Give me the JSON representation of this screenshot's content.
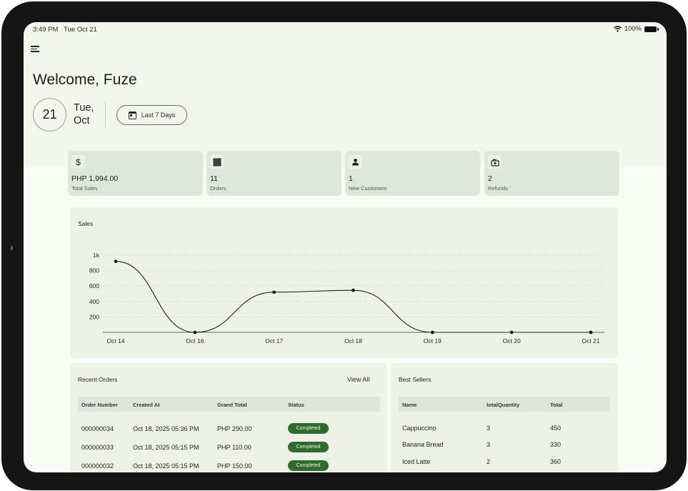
{
  "status_bar": {
    "time": "3:49 PM",
    "date": "Tue Oct 21",
    "battery": "100%"
  },
  "header": {
    "welcome": "Welcome, Fuze",
    "day": "21",
    "weekday": "Tue,",
    "month": "Oct",
    "range_label": "Last 7 Days"
  },
  "kpis": [
    {
      "icon": "dollar-icon",
      "glyph": "$",
      "value": "PHP 1,994.00",
      "label": "Total Sales"
    },
    {
      "icon": "orders-icon",
      "glyph": "▦",
      "value": "11",
      "label": "Orders"
    },
    {
      "icon": "person-icon",
      "glyph": "👤",
      "value": "1",
      "label": "New Customers"
    },
    {
      "icon": "refund-icon",
      "glyph": "⟲",
      "value": "2",
      "label": "Refunds"
    }
  ],
  "sales_chart": {
    "title": "Sales"
  },
  "chart_data": {
    "type": "line",
    "title": "Sales",
    "categories": [
      "Oct 14",
      "Oct 16",
      "Oct 17",
      "Oct 18",
      "Oct 19",
      "Oct 20",
      "Oct 21"
    ],
    "values": [
      920,
      0,
      520,
      545,
      0,
      0,
      0
    ],
    "y_tick_labels": [
      "200",
      "400",
      "600",
      "800",
      "1k"
    ],
    "y_ticks": [
      200,
      400,
      600,
      800,
      1000
    ],
    "ylim": [
      0,
      1000
    ],
    "grid": true
  },
  "recent_orders": {
    "title": "Recent Orders",
    "view_all": "View All",
    "columns": [
      "Order Number",
      "Created At",
      "Grand Total",
      "Status"
    ],
    "rows": [
      {
        "number": "000000034",
        "created": "Oct 18, 2025 05:36 PM",
        "total": "PHP 290.00",
        "status": "Completed"
      },
      {
        "number": "000000033",
        "created": "Oct 18, 2025 05:15 PM",
        "total": "PHP 110.00",
        "status": "Completed"
      },
      {
        "number": "000000032",
        "created": "Oct 18, 2025 05:15 PM",
        "total": "PHP 150.00",
        "status": "Completed"
      }
    ]
  },
  "best_sellers": {
    "title": "Best Sellers",
    "columns": [
      "Name",
      "totalQuantity",
      "Total"
    ],
    "rows": [
      {
        "name": "Cappuccino",
        "qty": "3",
        "total": "450"
      },
      {
        "name": "Banana Bread",
        "qty": "3",
        "total": "330"
      },
      {
        "name": "Iced Latte",
        "qty": "2",
        "total": "360"
      }
    ]
  },
  "colors": {
    "accent": "#2f6b2d",
    "card": "#dfe6da",
    "panel": "#eef2e6",
    "background": "#f9fcf4"
  }
}
